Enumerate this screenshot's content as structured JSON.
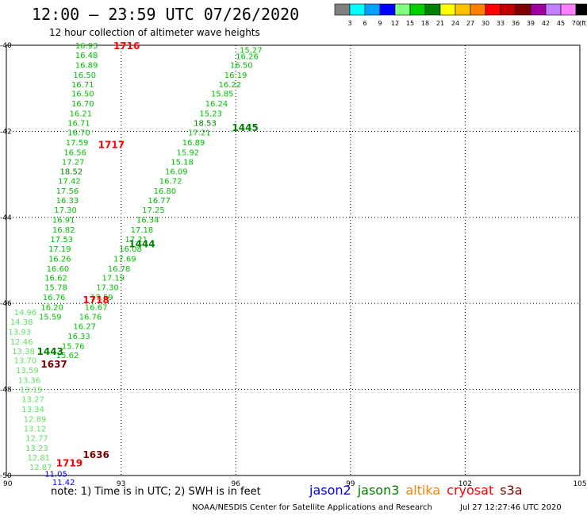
{
  "header": {
    "title": "12:00 – 23:59 UTC 07/26/2020",
    "subtitle": "12 hour collection of altimeter wave heights"
  },
  "colorbar": {
    "unit": "(ft)",
    "ticks": [
      "3",
      "6",
      "9",
      "12",
      "15",
      "18",
      "21",
      "24",
      "27",
      "30",
      "33",
      "36",
      "39",
      "42",
      "45",
      "70"
    ],
    "colors": [
      "#808080",
      "#00ffff",
      "#00a0ff",
      "#0000ff",
      "#80ff80",
      "#00d000",
      "#008000",
      "#ffff00",
      "#ffc000",
      "#ff8000",
      "#ff0000",
      "#c00000",
      "#800000",
      "#a000a0",
      "#c080ff",
      "#ff80ff",
      "#000000"
    ]
  },
  "footer": {
    "note": "note: 1) Time is in UTC; 2) SWH is in feet",
    "center": "NOAA/NESDIS Center for Satellite Applications and Research",
    "timestamp": "Jul 27 12:27:46 UTC 2020"
  },
  "legend": [
    {
      "name": "jason2",
      "color": "#0000ff"
    },
    {
      "name": "jason3",
      "color": "#008000"
    },
    {
      "name": "altika",
      "color": "#ff8000"
    },
    {
      "name": "cryosat",
      "color": "#ff0000"
    },
    {
      "name": "s3a",
      "color": "#800000"
    }
  ],
  "chart_data": {
    "type": "scatter",
    "xlim": [
      90,
      105
    ],
    "ylim": [
      -50,
      -40
    ],
    "x_ticks": [
      "90",
      "93",
      "96",
      "99",
      "102",
      "105"
    ],
    "y_ticks": [
      "-40",
      "-42",
      "-44",
      "-46",
      "-48",
      "-50"
    ],
    "grid": true,
    "track_times": [
      {
        "label": "1716",
        "x": 92.8,
        "y": -40.0,
        "color": "#ff0000"
      },
      {
        "label": "1717",
        "x": 92.4,
        "y": -42.3,
        "color": "#ff0000"
      },
      {
        "label": "1718",
        "x": 92.0,
        "y": -45.9,
        "color": "#ff0000"
      },
      {
        "label": "1719",
        "x": 91.3,
        "y": -49.7,
        "color": "#ff0000"
      },
      {
        "label": "1445",
        "x": 95.9,
        "y": -41.9,
        "color": "#008000"
      },
      {
        "label": "1444",
        "x": 93.2,
        "y": -44.6,
        "color": "#008000"
      },
      {
        "label": "1443",
        "x": 90.8,
        "y": -47.1,
        "color": "#008000"
      },
      {
        "label": "1637",
        "x": 90.9,
        "y": -47.4,
        "color": "#800000"
      },
      {
        "label": "1636",
        "x": 92.0,
        "y": -49.5,
        "color": "#800000"
      }
    ],
    "series": [
      {
        "name": "cryosat",
        "points": [
          [
            91.8,
            -40.0,
            16.93
          ],
          [
            91.8,
            -40.22,
            16.48
          ],
          [
            91.8,
            -40.45,
            16.89
          ],
          [
            91.75,
            -40.68,
            16.5
          ],
          [
            91.7,
            -40.9,
            16.71
          ],
          [
            91.7,
            -41.12,
            16.5
          ],
          [
            91.7,
            -41.35,
            16.7
          ],
          [
            91.65,
            -41.58,
            16.21
          ],
          [
            91.6,
            -41.8,
            16.71
          ],
          [
            91.6,
            -42.02,
            16.7
          ],
          [
            91.55,
            -42.25,
            17.59
          ],
          [
            91.5,
            -42.48,
            16.56
          ],
          [
            91.45,
            -42.7,
            17.27
          ],
          [
            91.4,
            -42.92,
            18.52
          ],
          [
            91.35,
            -43.15,
            17.42
          ],
          [
            91.3,
            -43.38,
            17.56
          ],
          [
            91.3,
            -43.6,
            16.33
          ],
          [
            91.25,
            -43.82,
            17.3
          ],
          [
            91.2,
            -44.05,
            16.91
          ],
          [
            91.2,
            -44.28,
            16.82
          ],
          [
            91.15,
            -44.5,
            17.53
          ],
          [
            91.1,
            -44.72,
            17.19
          ],
          [
            91.1,
            -44.95,
            16.26
          ],
          [
            91.05,
            -45.18,
            16.6
          ],
          [
            91.0,
            -45.4,
            16.62
          ],
          [
            91.0,
            -45.62,
            15.78
          ],
          [
            90.95,
            -45.85,
            16.76
          ],
          [
            90.9,
            -46.08,
            16.2
          ],
          [
            90.85,
            -46.3,
            15.59
          ]
        ]
      },
      {
        "name": "jason3",
        "points": [
          [
            96.1,
            -40.1,
            15.27
          ],
          [
            96.0,
            -40.25,
            16.26
          ],
          [
            95.85,
            -40.45,
            16.5
          ],
          [
            95.7,
            -40.68,
            16.19
          ],
          [
            95.55,
            -40.9,
            16.22
          ],
          [
            95.35,
            -41.12,
            15.85
          ],
          [
            95.2,
            -41.35,
            16.24
          ],
          [
            95.05,
            -41.58,
            15.23
          ],
          [
            94.9,
            -41.8,
            18.53
          ],
          [
            94.75,
            -42.02,
            17.21
          ],
          [
            94.6,
            -42.25,
            16.89
          ],
          [
            94.45,
            -42.48,
            15.92
          ],
          [
            94.3,
            -42.7,
            15.18
          ],
          [
            94.15,
            -42.92,
            16.09
          ],
          [
            94.0,
            -43.15,
            16.72
          ],
          [
            93.85,
            -43.38,
            16.8
          ],
          [
            93.7,
            -43.6,
            16.77
          ],
          [
            93.55,
            -43.82,
            17.25
          ],
          [
            93.4,
            -44.05,
            16.34
          ],
          [
            93.25,
            -44.28,
            17.18
          ],
          [
            93.1,
            -44.5,
            17.21
          ],
          [
            92.95,
            -44.72,
            16.08
          ],
          [
            92.8,
            -44.95,
            17.69
          ],
          [
            92.65,
            -45.18,
            16.78
          ],
          [
            92.5,
            -45.4,
            17.19
          ],
          [
            92.35,
            -45.62,
            17.3
          ],
          [
            92.2,
            -45.85,
            17.59
          ],
          [
            92.05,
            -46.08,
            16.67
          ],
          [
            91.9,
            -46.3,
            16.76
          ],
          [
            91.75,
            -46.52,
            16.27
          ],
          [
            91.6,
            -46.75,
            16.33
          ],
          [
            91.45,
            -46.98,
            15.76
          ],
          [
            91.3,
            -47.2,
            15.62
          ]
        ]
      },
      {
        "name": "s3a",
        "points": [
          [
            90.2,
            -46.2,
            14.96
          ],
          [
            90.1,
            -46.42,
            14.38
          ],
          [
            90.05,
            -46.65,
            13.93
          ],
          [
            90.1,
            -46.88,
            12.46
          ],
          [
            90.15,
            -47.1,
            13.38
          ],
          [
            90.2,
            -47.32,
            13.7
          ],
          [
            90.25,
            -47.55,
            13.59
          ],
          [
            90.3,
            -47.78,
            13.36
          ],
          [
            90.35,
            -48.0,
            13.15
          ],
          [
            90.4,
            -48.22,
            13.27
          ],
          [
            90.4,
            -48.45,
            13.34
          ],
          [
            90.45,
            -48.68,
            12.89
          ],
          [
            90.45,
            -48.9,
            13.12
          ],
          [
            90.5,
            -49.12,
            12.77
          ],
          [
            90.5,
            -49.35,
            13.23
          ],
          [
            90.55,
            -49.58,
            12.81
          ],
          [
            90.6,
            -49.8,
            12.87
          ]
        ]
      },
      {
        "name": "jason2",
        "points": [
          [
            91.0,
            -49.95,
            11.05
          ],
          [
            91.2,
            -50.15,
            11.42
          ]
        ]
      }
    ]
  }
}
